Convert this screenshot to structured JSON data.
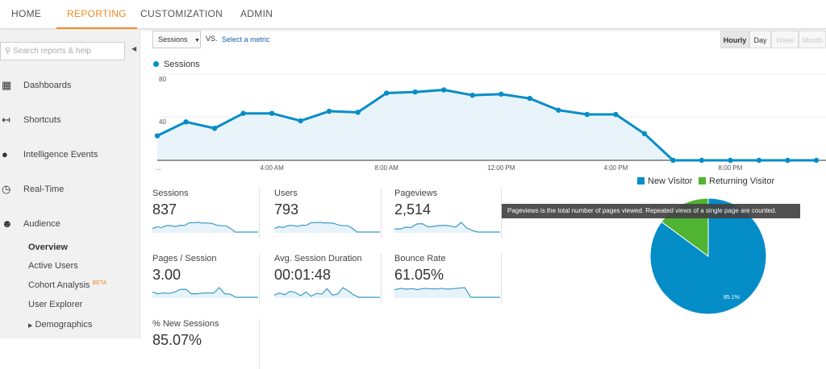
{
  "topnav": {
    "tabs": [
      {
        "label": "HOME",
        "active": false
      },
      {
        "label": "REPORTING",
        "active": true
      },
      {
        "label": "CUSTOMIZATION",
        "active": false
      },
      {
        "label": "ADMIN",
        "active": false
      }
    ]
  },
  "sidebar": {
    "search_placeholder": "Search reports & help",
    "items": [
      {
        "label": "Dashboards",
        "icon": "grid-icon"
      },
      {
        "label": "Shortcuts",
        "icon": "shortcut-arrow-icon"
      },
      {
        "label": "Intelligence Events",
        "icon": "lightbulb-icon"
      },
      {
        "label": "Real-Time",
        "icon": "clock-icon"
      },
      {
        "label": "Audience",
        "icon": "people-icon"
      }
    ],
    "audience_sub": [
      "Overview",
      "Active Users",
      "Cohort Analysis",
      "User Explorer",
      "Demographics"
    ],
    "beta": "BETA"
  },
  "controls": {
    "metric_select": "Sessions",
    "vs": "VS.",
    "select_metric": "Select a metric",
    "granularity": [
      {
        "label": "Hourly",
        "state": "active"
      },
      {
        "label": "Day",
        "state": "normal"
      },
      {
        "label": "Week",
        "state": "disabled"
      },
      {
        "label": "Month",
        "state": "disabled"
      }
    ]
  },
  "chart_data": {
    "type": "area",
    "series": [
      {
        "name": "Sessions",
        "color": "#058dc7",
        "values": [
          23,
          36,
          30,
          44,
          44,
          37,
          46,
          45,
          63,
          64,
          66,
          61,
          62,
          58,
          47,
          43,
          43,
          25,
          0,
          0,
          0,
          0,
          0,
          0
        ]
      }
    ],
    "x": [
      "12:00 AM",
      "1:00 AM",
      "2:00 AM",
      "3:00 AM",
      "4:00 AM",
      "5:00 AM",
      "6:00 AM",
      "7:00 AM",
      "8:00 AM",
      "9:00 AM",
      "10:00 AM",
      "11:00 AM",
      "12:00 PM",
      "1:00 PM",
      "2:00 PM",
      "3:00 PM",
      "4:00 PM",
      "5:00 PM",
      "6:00 PM",
      "7:00 PM",
      "8:00 PM",
      "9:00 PM",
      "10:00 PM",
      "11:00 PM"
    ],
    "x_tick_labels": [
      "...",
      "4:00 AM",
      "8:00 AM",
      "12:00 PM",
      "4:00 PM",
      "8:00 PM"
    ],
    "y_tick_labels": [
      "40",
      "80"
    ],
    "ylim": [
      0,
      80
    ],
    "grid": true
  },
  "metrics": [
    {
      "title": "Sessions",
      "value": "837",
      "spark": [
        23,
        36,
        30,
        44,
        44,
        37,
        46,
        45,
        63,
        64,
        66,
        61,
        62,
        58,
        47,
        43,
        43,
        25,
        0,
        0,
        0,
        0,
        0,
        0
      ]
    },
    {
      "title": "Users",
      "value": "793",
      "spark": [
        22,
        34,
        29,
        42,
        42,
        36,
        44,
        43,
        60,
        61,
        62,
        58,
        59,
        55,
        45,
        41,
        41,
        24,
        0,
        0,
        0,
        0,
        0,
        0
      ]
    },
    {
      "title": "Pageviews",
      "value": "2,514",
      "spark": [
        20,
        18,
        30,
        28,
        50,
        52,
        32,
        35,
        40,
        42,
        38,
        30,
        60,
        25,
        10,
        0,
        0,
        0,
        0,
        0
      ]
    },
    {
      "title": "Pages / Session",
      "value": "3.00",
      "spark": [
        30,
        20,
        25,
        22,
        30,
        45,
        46,
        20,
        20,
        24,
        25,
        24,
        55,
        20,
        18,
        0,
        0,
        0,
        0,
        0
      ]
    },
    {
      "title": "Avg. Session Duration",
      "value": "00:01:48",
      "spark": [
        10,
        20,
        12,
        28,
        22,
        8,
        25,
        5,
        18,
        15,
        40,
        10,
        15,
        45,
        30,
        12,
        0,
        0,
        0,
        0,
        0
      ]
    },
    {
      "title": "Bounce Rate",
      "value": "61.05%",
      "spark": [
        50,
        60,
        55,
        58,
        52,
        60,
        58,
        56,
        60,
        55,
        58,
        62,
        65,
        0,
        0,
        0,
        0,
        0,
        0
      ]
    },
    {
      "title": "% New Sessions",
      "value": "85.07%"
    }
  ],
  "tooltip": "Pageviews is the total number of pages viewed. Repeated views of a single page are counted.",
  "pie": {
    "slices": [
      {
        "name": "New Visitor",
        "value": 85.1,
        "color": "#058dc7"
      },
      {
        "name": "Returning Visitor",
        "value": 14.9,
        "color": "#50b432"
      }
    ],
    "label": "85.1%"
  }
}
